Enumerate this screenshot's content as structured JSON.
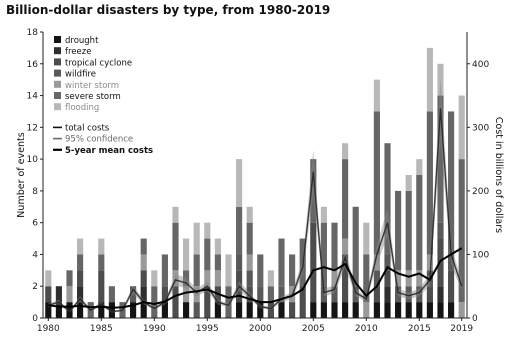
{
  "chart_data": {
    "type": "bar",
    "title": "Billion-dollar disasters by type, from 1980-2019",
    "xlabel": "",
    "ylabel": "Number of events",
    "y2label": "Cost in billions of dollars",
    "ylim": [
      0,
      18
    ],
    "y2lim": [
      0,
      450
    ],
    "grid": false,
    "legend_position": "top-left",
    "x": [
      1980,
      1981,
      1982,
      1983,
      1984,
      1985,
      1986,
      1987,
      1988,
      1989,
      1990,
      1991,
      1992,
      1993,
      1994,
      1995,
      1996,
      1997,
      1998,
      1999,
      2000,
      2001,
      2002,
      2003,
      2004,
      2005,
      2006,
      2007,
      2008,
      2009,
      2010,
      2011,
      2012,
      2013,
      2014,
      2015,
      2016,
      2017,
      2018,
      2019
    ],
    "x_ticks": [
      1980,
      1985,
      1990,
      1995,
      2000,
      2005,
      2010,
      2015,
      2019
    ],
    "y_ticks": [
      0,
      2,
      4,
      6,
      8,
      10,
      12,
      14,
      16,
      18
    ],
    "y2_ticks": [
      0,
      100,
      200,
      300,
      400
    ],
    "series": [
      {
        "name": "drought",
        "color": "#141414",
        "values": [
          1,
          1,
          1,
          1,
          0,
          1,
          1,
          0,
          1,
          1,
          0,
          1,
          0,
          1,
          0,
          0,
          1,
          0,
          1,
          1,
          1,
          0,
          1,
          0,
          0,
          1,
          1,
          1,
          1,
          1,
          0,
          1,
          1,
          1,
          1,
          1,
          1,
          1,
          1,
          0
        ]
      },
      {
        "name": "freeze",
        "color": "#2f2f2f",
        "values": [
          0,
          1,
          0,
          1,
          0,
          0,
          0,
          0,
          0,
          1,
          0,
          0,
          0,
          0,
          0,
          0,
          0,
          0,
          0,
          0,
          0,
          0,
          0,
          0,
          0,
          0,
          0,
          0,
          0,
          0,
          0,
          0,
          1,
          0,
          0,
          0,
          0,
          1,
          0,
          0
        ]
      },
      {
        "name": "tropical cyclone",
        "color": "#4d4d4d",
        "values": [
          1,
          0,
          0,
          1,
          0,
          2,
          0,
          0,
          0,
          1,
          0,
          1,
          2,
          0,
          0,
          2,
          1,
          0,
          2,
          1,
          0,
          1,
          0,
          1,
          2,
          5,
          0,
          0,
          3,
          0,
          0,
          1,
          1,
          0,
          0,
          0,
          1,
          3,
          2,
          0
        ]
      },
      {
        "name": "wildfire",
        "color": "#595959",
        "values": [
          0,
          0,
          0,
          0,
          0,
          0,
          0,
          0,
          1,
          0,
          0,
          0,
          0,
          0,
          1,
          0,
          0,
          0,
          1,
          1,
          1,
          0,
          1,
          0,
          0,
          0,
          1,
          1,
          0,
          1,
          0,
          1,
          1,
          1,
          1,
          1,
          1,
          1,
          1,
          0
        ]
      },
      {
        "name": "winter storm",
        "color": "#9a9a9a",
        "values": [
          0,
          0,
          1,
          0,
          0,
          0,
          0,
          0,
          0,
          1,
          0,
          0,
          1,
          1,
          1,
          1,
          1,
          0,
          0,
          1,
          0,
          0,
          0,
          1,
          0,
          0,
          0,
          1,
          1,
          0,
          1,
          1,
          0,
          1,
          1,
          1,
          1,
          0,
          0,
          1
        ]
      },
      {
        "name": "severe storm",
        "color": "#666666",
        "values": [
          0,
          0,
          1,
          1,
          1,
          1,
          1,
          1,
          0,
          1,
          2,
          2,
          3,
          1,
          2,
          2,
          1,
          2,
          3,
          2,
          2,
          1,
          3,
          2,
          3,
          4,
          4,
          3,
          5,
          5,
          3,
          9,
          7,
          5,
          5,
          6,
          9,
          8,
          9,
          9
        ]
      },
      {
        "name": "flooding",
        "color": "#b8b8b8",
        "values": [
          1,
          0,
          0,
          1,
          0,
          1,
          0,
          0,
          0,
          0,
          1,
          0,
          1,
          2,
          2,
          1,
          1,
          2,
          3,
          1,
          0,
          1,
          0,
          0,
          0,
          0,
          1,
          0,
          1,
          0,
          2,
          2,
          0,
          0,
          1,
          1,
          4,
          2,
          0,
          4
        ]
      }
    ],
    "legend_lines": [
      {
        "name": "total costs",
        "color": "#111111"
      },
      {
        "name": "95% confidence",
        "color": "#6a6a6a"
      },
      {
        "name": "5-year mean costs",
        "color": "#000000"
      }
    ],
    "total_costs": [
      20,
      25,
      10,
      30,
      12,
      22,
      10,
      12,
      45,
      25,
      15,
      25,
      60,
      55,
      40,
      50,
      25,
      20,
      50,
      35,
      18,
      15,
      30,
      35,
      80,
      230,
      40,
      45,
      95,
      40,
      30,
      100,
      150,
      40,
      35,
      40,
      60,
      330,
      100,
      50
    ],
    "five_year_mean_costs": [
      20,
      18,
      18,
      19,
      17,
      18,
      16,
      17,
      20,
      25,
      22,
      26,
      35,
      40,
      42,
      45,
      38,
      32,
      35,
      30,
      25,
      25,
      30,
      35,
      45,
      75,
      80,
      75,
      85,
      55,
      35,
      50,
      80,
      70,
      65,
      70,
      60,
      90,
      100,
      110
    ]
  }
}
